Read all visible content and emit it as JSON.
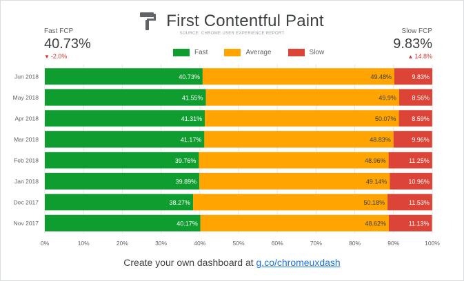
{
  "header": {
    "title": "First Contentful Paint",
    "source": "SOURCE: CHROME USER EXPERIENCE REPORT"
  },
  "kpis": {
    "fast": {
      "label": "Fast FCP",
      "value": "40.73%",
      "change": "-2.0%"
    },
    "slow": {
      "label": "Slow FCP",
      "value": "9.83%",
      "change": "14.8%"
    }
  },
  "footer": {
    "text": "Create your own dashboard at ",
    "link": "g.co/chromeuxdash"
  },
  "colors": {
    "fast": "#0f9d30",
    "average": "#ffa400",
    "slow": "#db4437",
    "negative_change": "#d93025"
  },
  "chart_data": {
    "type": "bar",
    "orientation": "horizontal",
    "stacked": true,
    "title": "First Contentful Paint",
    "subtitle": "SOURCE: CHROME USER EXPERIENCE REPORT",
    "categories": [
      "Jun 2018",
      "May 2018",
      "Apr 2018",
      "Mar 2018",
      "Feb 2018",
      "Jan 2018",
      "Dec 2017",
      "Nov 2017"
    ],
    "series": [
      {
        "name": "Fast",
        "values": [
          40.73,
          41.55,
          41.31,
          41.17,
          39.76,
          39.89,
          38.27,
          40.17
        ],
        "labels": [
          "40.73%",
          "41.55%",
          "41.31%",
          "41.17%",
          "39.76%",
          "39.89%",
          "38.27%",
          "40.17%"
        ]
      },
      {
        "name": "Average",
        "values": [
          49.48,
          49.9,
          50.07,
          48.83,
          48.96,
          49.14,
          50.18,
          48.62
        ],
        "labels": [
          "49.48%",
          "49.9%",
          "50.07%",
          "48.83%",
          "48.96%",
          "49.14%",
          "50.18%",
          "48.62%"
        ]
      },
      {
        "name": "Slow",
        "values": [
          9.83,
          8.56,
          8.59,
          9.96,
          11.25,
          10.96,
          11.53,
          11.13
        ],
        "labels": [
          "9.83%",
          "8.56%",
          "8.59%",
          "9.96%",
          "11.25%",
          "10.96%",
          "11.53%",
          "11.13%"
        ]
      }
    ],
    "xlim": [
      0,
      100
    ],
    "xticks": [
      "0%",
      "10%",
      "20%",
      "30%",
      "40%",
      "50%",
      "60%",
      "70%",
      "80%",
      "90%",
      "100%"
    ],
    "grid": true,
    "legend_position": "top"
  }
}
